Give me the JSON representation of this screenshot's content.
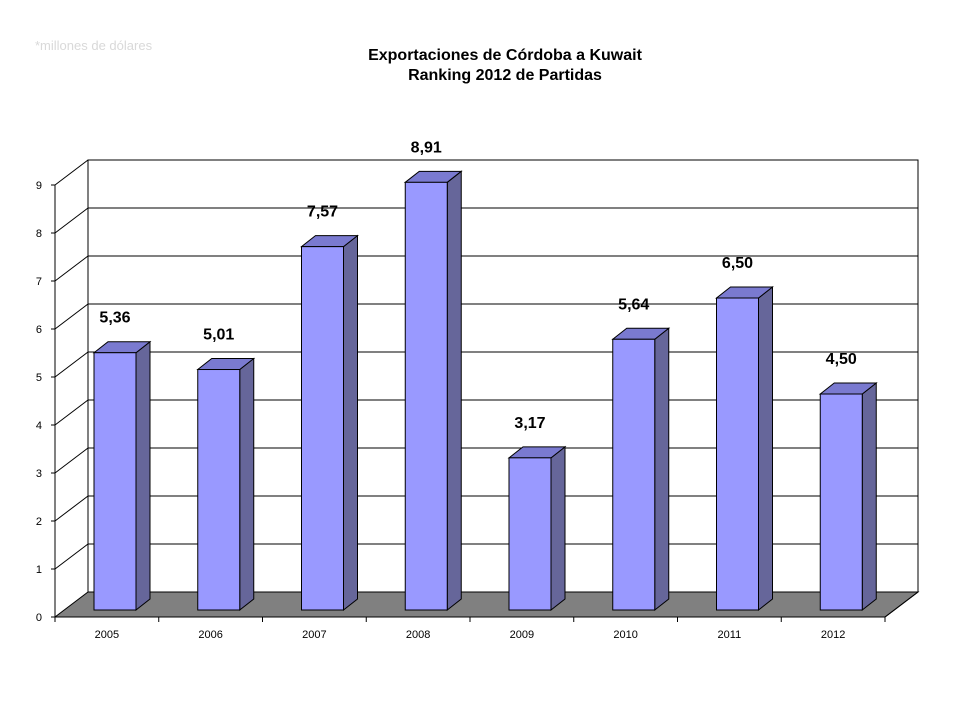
{
  "note": "*millones de dólares",
  "chart_data": {
    "type": "bar",
    "title": "Exportaciones de Córdoba a Kuwait",
    "subtitle": "Ranking 2012 de Partidas",
    "categories": [
      "2005",
      "2006",
      "2007",
      "2008",
      "2009",
      "2010",
      "2011",
      "2012"
    ],
    "values": [
      5.36,
      5.01,
      7.57,
      8.91,
      3.17,
      5.64,
      6.5,
      4.5
    ],
    "data_labels": [
      "5,36",
      "5,01",
      "7,57",
      "8,91",
      "3,17",
      "5,64",
      "6,50",
      "4,50"
    ],
    "yticks": [
      "0",
      "1",
      "2",
      "3",
      "4",
      "5",
      "6",
      "7",
      "8",
      "9"
    ],
    "ylim": [
      0,
      9
    ],
    "grid": true,
    "three_d": true,
    "colors": {
      "bar_front": "#9999ff",
      "bar_side": "#66669a",
      "bar_top": "#7a7ad0",
      "floor": "#808080",
      "wall": "#ffffff",
      "grid": "#000000"
    }
  }
}
